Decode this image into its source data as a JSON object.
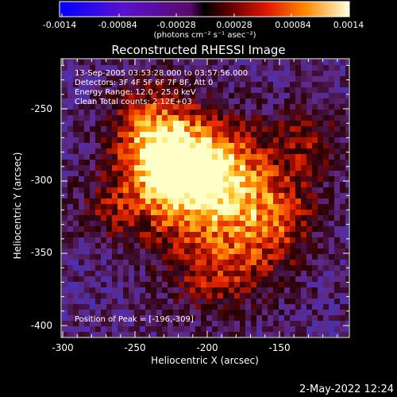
{
  "colorbar": {
    "tick_labels": [
      "-0.0014",
      "-0.00084",
      "-0.00028",
      "0.00028",
      "0.00084",
      "0.0014"
    ],
    "units": "(photons cm⁻² s⁻¹ asec⁻²)"
  },
  "plot": {
    "title": "Reconstructed RHESSI Image",
    "xlabel": "Heliocentric X (arcsec)",
    "ylabel": "Heliocentric Y (arcsec)",
    "x_ticks": [
      "-300",
      "-250",
      "-200",
      "-150"
    ],
    "y_ticks": [
      "-250",
      "-300",
      "-350",
      "-400"
    ]
  },
  "info": {
    "time_range": "13-Sep-2005 03:53:28.000 to 03:57:56.000",
    "detectors": "Detectors: 3F 4F 5F 6F 7F 8F, Att 0",
    "energy_range": "Energy Range: 12.0 - 25.0 keV",
    "clean": "Clean     Total counts: 2.12E+03",
    "peak": "Position of Peak = [-196,-309]"
  },
  "footer": {
    "timestamp": "2-May-2022 12:24"
  }
}
